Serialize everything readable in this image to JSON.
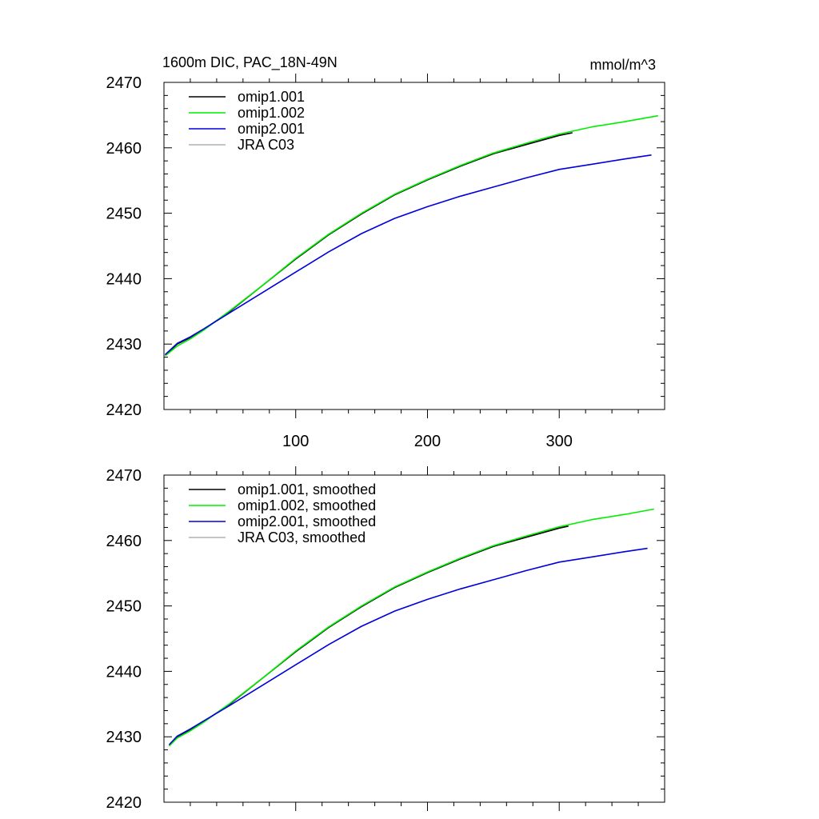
{
  "page": {
    "title_left": "1600m DIC, PAC_18N-49N",
    "title_right": "mmol/m^3"
  },
  "chart_data": [
    {
      "type": "line",
      "title": "1600m DIC, PAC_18N-49N",
      "units": "mmol/m^3",
      "xlim": [
        0,
        380
      ],
      "ylim": [
        2420,
        2470
      ],
      "x_ticks": [
        100,
        200,
        300
      ],
      "x_tick_labels": [
        "100",
        "200",
        "300"
      ],
      "y_ticks": [
        2420,
        2430,
        2440,
        2450,
        2460,
        2470
      ],
      "y_tick_labels": [
        "2420",
        "2430",
        "2440",
        "2450",
        "2460",
        "2470"
      ],
      "legend_position": "top-left",
      "series": [
        {
          "name": "omip1.001",
          "color": "#000000",
          "x": [
            1,
            10,
            20,
            30,
            50,
            75,
            100,
            125,
            150,
            175,
            200,
            225,
            250,
            275,
            300,
            310
          ],
          "y": [
            2428.3,
            2430.0,
            2431.0,
            2432.2,
            2435.0,
            2439.0,
            2443.0,
            2446.7,
            2449.9,
            2452.8,
            2455.1,
            2457.2,
            2459.1,
            2460.5,
            2461.9,
            2462.3
          ]
        },
        {
          "name": "omip1.002",
          "color": "#00ee00",
          "x": [
            1,
            10,
            20,
            30,
            50,
            75,
            100,
            125,
            150,
            175,
            200,
            225,
            250,
            275,
            300,
            325,
            350,
            375
          ],
          "y": [
            2428.2,
            2429.7,
            2430.8,
            2432.1,
            2435.1,
            2439.0,
            2443.1,
            2446.8,
            2450.0,
            2452.9,
            2455.2,
            2457.3,
            2459.2,
            2460.7,
            2462.1,
            2463.2,
            2464.0,
            2464.9
          ]
        },
        {
          "name": "omip2.001",
          "color": "#0000dd",
          "x": [
            1,
            10,
            20,
            30,
            50,
            75,
            100,
            125,
            150,
            175,
            200,
            225,
            250,
            275,
            300,
            325,
            350,
            370
          ],
          "y": [
            2428.4,
            2430.1,
            2431.1,
            2432.3,
            2434.8,
            2437.9,
            2441.0,
            2444.1,
            2446.9,
            2449.2,
            2451.0,
            2452.6,
            2454.0,
            2455.4,
            2456.7,
            2457.5,
            2458.3,
            2458.9
          ]
        },
        {
          "name": "JRA C03",
          "color": "#b0b0b0",
          "x": [],
          "y": []
        }
      ]
    },
    {
      "type": "line",
      "xlim": [
        0,
        380
      ],
      "ylim": [
        2420,
        2470
      ],
      "x_ticks": [
        100,
        200,
        300
      ],
      "y_ticks": [
        2420,
        2430,
        2440,
        2450,
        2460,
        2470
      ],
      "y_tick_labels": [
        "2420",
        "2430",
        "2440",
        "2450",
        "2460",
        "2470"
      ],
      "legend_position": "top-left",
      "series": [
        {
          "name": "omip1.001, smoothed",
          "color": "#000000",
          "x": [
            4,
            10,
            20,
            30,
            50,
            75,
            100,
            125,
            150,
            175,
            200,
            225,
            250,
            275,
            300,
            307
          ],
          "y": [
            2428.7,
            2430.0,
            2431.1,
            2432.3,
            2435.0,
            2439.0,
            2443.0,
            2446.7,
            2449.9,
            2452.8,
            2455.1,
            2457.2,
            2459.1,
            2460.5,
            2461.9,
            2462.2
          ]
        },
        {
          "name": "omip1.002, smoothed",
          "color": "#00ee00",
          "x": [
            4,
            10,
            20,
            30,
            50,
            75,
            100,
            125,
            150,
            175,
            200,
            225,
            250,
            275,
            300,
            325,
            350,
            372
          ],
          "y": [
            2428.6,
            2429.8,
            2430.9,
            2432.2,
            2435.1,
            2439.0,
            2443.1,
            2446.8,
            2450.0,
            2452.9,
            2455.2,
            2457.3,
            2459.2,
            2460.7,
            2462.1,
            2463.2,
            2464.0,
            2464.8
          ]
        },
        {
          "name": "omip2.001, smoothed",
          "color": "#0000dd",
          "x": [
            4,
            10,
            20,
            30,
            50,
            75,
            100,
            125,
            150,
            175,
            200,
            225,
            250,
            275,
            300,
            325,
            350,
            367
          ],
          "y": [
            2428.8,
            2430.1,
            2431.2,
            2432.4,
            2434.8,
            2437.9,
            2441.0,
            2444.1,
            2446.9,
            2449.2,
            2451.0,
            2452.6,
            2454.0,
            2455.4,
            2456.7,
            2457.5,
            2458.3,
            2458.8
          ]
        },
        {
          "name": "JRA C03, smoothed",
          "color": "#b0b0b0",
          "x": [],
          "y": []
        }
      ]
    }
  ]
}
